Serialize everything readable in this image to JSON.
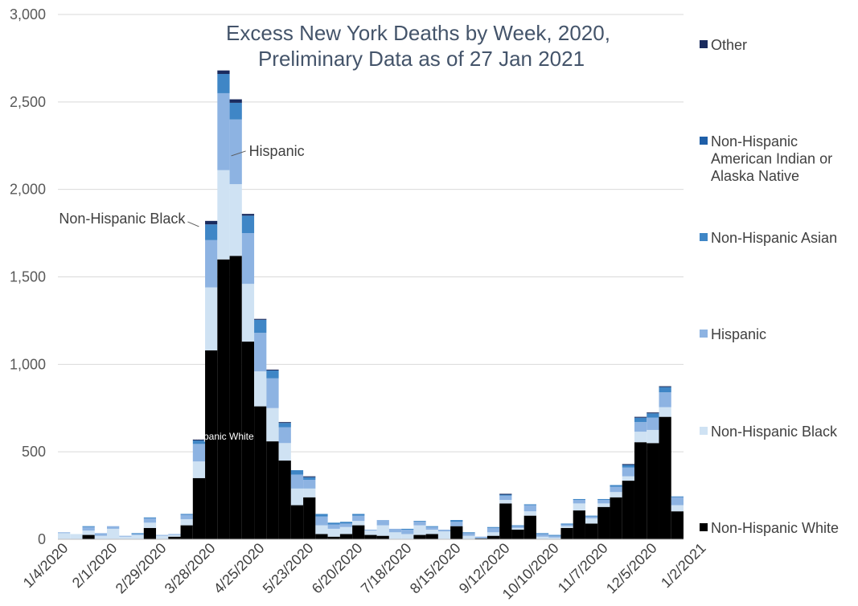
{
  "chart_data": {
    "type": "bar",
    "stacked": true,
    "title_lines": [
      "Excess New York Deaths by Week, 2020,",
      "Preliminary Data as of 27 Jan 2021"
    ],
    "ylim": [
      0,
      3000
    ],
    "yticks": [
      "0",
      "500",
      "1,000",
      "1,500",
      "2,000",
      "2,500",
      "3,000"
    ],
    "ytick_values": [
      0,
      500,
      1000,
      1500,
      2000,
      2500,
      3000
    ],
    "x_tick_labels": [
      {
        "index": 0,
        "label": "1/4/2020"
      },
      {
        "index": 4,
        "label": "2/1/2020"
      },
      {
        "index": 8,
        "label": "2/29/2020"
      },
      {
        "index": 12,
        "label": "3/28/2020"
      },
      {
        "index": 16,
        "label": "4/25/2020"
      },
      {
        "index": 20,
        "label": "5/23/2020"
      },
      {
        "index": 24,
        "label": "6/20/2020"
      },
      {
        "index": 28,
        "label": "7/18/2020"
      },
      {
        "index": 32,
        "label": "8/15/2020"
      },
      {
        "index": 36,
        "label": "9/12/2020"
      },
      {
        "index": 40,
        "label": "10/10/2020"
      },
      {
        "index": 44,
        "label": "11/7/2020"
      },
      {
        "index": 48,
        "label": "12/5/2020"
      },
      {
        "index": 52,
        "label": "1/2/2021"
      }
    ],
    "grid": true,
    "legend_placement": "right",
    "series": [
      {
        "name": "Non-Hispanic White",
        "color": "#000000",
        "values": [
          0,
          0,
          25,
          0,
          0,
          0,
          0,
          65,
          0,
          15,
          80,
          350,
          1080,
          1600,
          1620,
          1130,
          760,
          560,
          450,
          195,
          240,
          30,
          15,
          30,
          80,
          25,
          20,
          0,
          0,
          25,
          30,
          0,
          75,
          0,
          5,
          20,
          205,
          55,
          135,
          0,
          0,
          65,
          165,
          90,
          185,
          240,
          335,
          555,
          550,
          700,
          160
        ]
      },
      {
        "name": "Non-Hispanic Black",
        "color": "#cfe2f3",
        "values": [
          35,
          30,
          25,
          20,
          60,
          15,
          25,
          30,
          20,
          10,
          35,
          95,
          360,
          510,
          410,
          330,
          200,
          190,
          100,
          95,
          50,
          50,
          45,
          40,
          25,
          25,
          60,
          40,
          30,
          55,
          25,
          45,
          0,
          20,
          0,
          20,
          20,
          10,
          25,
          15,
          10,
          10,
          40,
          30,
          20,
          30,
          25,
          60,
          75,
          55,
          35
        ]
      },
      {
        "name": "Hispanic",
        "color": "#8db3e2",
        "values": [
          5,
          0,
          20,
          15,
          15,
          5,
          5,
          25,
          5,
          5,
          25,
          100,
          270,
          440,
          370,
          290,
          220,
          170,
          90,
          80,
          50,
          50,
          25,
          20,
          30,
          5,
          30,
          20,
          25,
          20,
          15,
          10,
          25,
          15,
          10,
          25,
          25,
          10,
          35,
          15,
          10,
          10,
          20,
          10,
          20,
          30,
          50,
          55,
          70,
          85,
          45
        ]
      },
      {
        "name": "Non-Hispanic Asian",
        "color": "#3f86c6",
        "values": [
          0,
          0,
          5,
          0,
          0,
          0,
          5,
          5,
          0,
          0,
          5,
          20,
          90,
          110,
          95,
          100,
          75,
          45,
          25,
          25,
          15,
          15,
          10,
          10,
          10,
          0,
          0,
          0,
          5,
          5,
          5,
          0,
          10,
          5,
          0,
          5,
          5,
          5,
          5,
          5,
          5,
          5,
          5,
          5,
          5,
          10,
          15,
          25,
          25,
          30,
          5
        ]
      },
      {
        "name": "Non-Hispanic American Indian or Alaska Native",
        "color": "#1f5fa8",
        "values": [
          0,
          0,
          0,
          0,
          0,
          0,
          0,
          0,
          0,
          0,
          0,
          0,
          0,
          0,
          0,
          0,
          0,
          0,
          0,
          0,
          0,
          0,
          0,
          0,
          0,
          0,
          0,
          0,
          0,
          0,
          0,
          0,
          0,
          0,
          0,
          0,
          0,
          0,
          0,
          0,
          0,
          0,
          0,
          0,
          0,
          0,
          0,
          0,
          0,
          0,
          0
        ]
      },
      {
        "name": "Other",
        "color": "#1a2b5e",
        "values": [
          0,
          0,
          0,
          0,
          0,
          0,
          0,
          0,
          0,
          0,
          0,
          5,
          20,
          20,
          20,
          10,
          5,
          5,
          5,
          0,
          5,
          0,
          0,
          0,
          0,
          0,
          0,
          0,
          0,
          0,
          0,
          0,
          0,
          0,
          0,
          0,
          5,
          0,
          0,
          0,
          0,
          0,
          0,
          0,
          0,
          0,
          5,
          5,
          5,
          5,
          0
        ]
      }
    ],
    "legend_order": [
      "Other",
      "Non-Hispanic American Indian or Alaska Native",
      "Non-Hispanic Asian",
      "Hispanic",
      "Non-Hispanic Black",
      "Non-Hispanic White"
    ],
    "annotations": [
      {
        "text": "Hispanic",
        "bar_index": 13,
        "value": 2210,
        "style": "outside-right"
      },
      {
        "text": "Non-Hispanic Black",
        "bar_index": 11,
        "value": 1870,
        "style": "outside-left"
      },
      {
        "text": "Non-Hispanic White",
        "bar_index": 12,
        "value": 570,
        "style": "inside"
      }
    ],
    "colors": {
      "grid": "#d9d9d9",
      "axis": "#bfbfbf",
      "title": "#44546a"
    }
  }
}
